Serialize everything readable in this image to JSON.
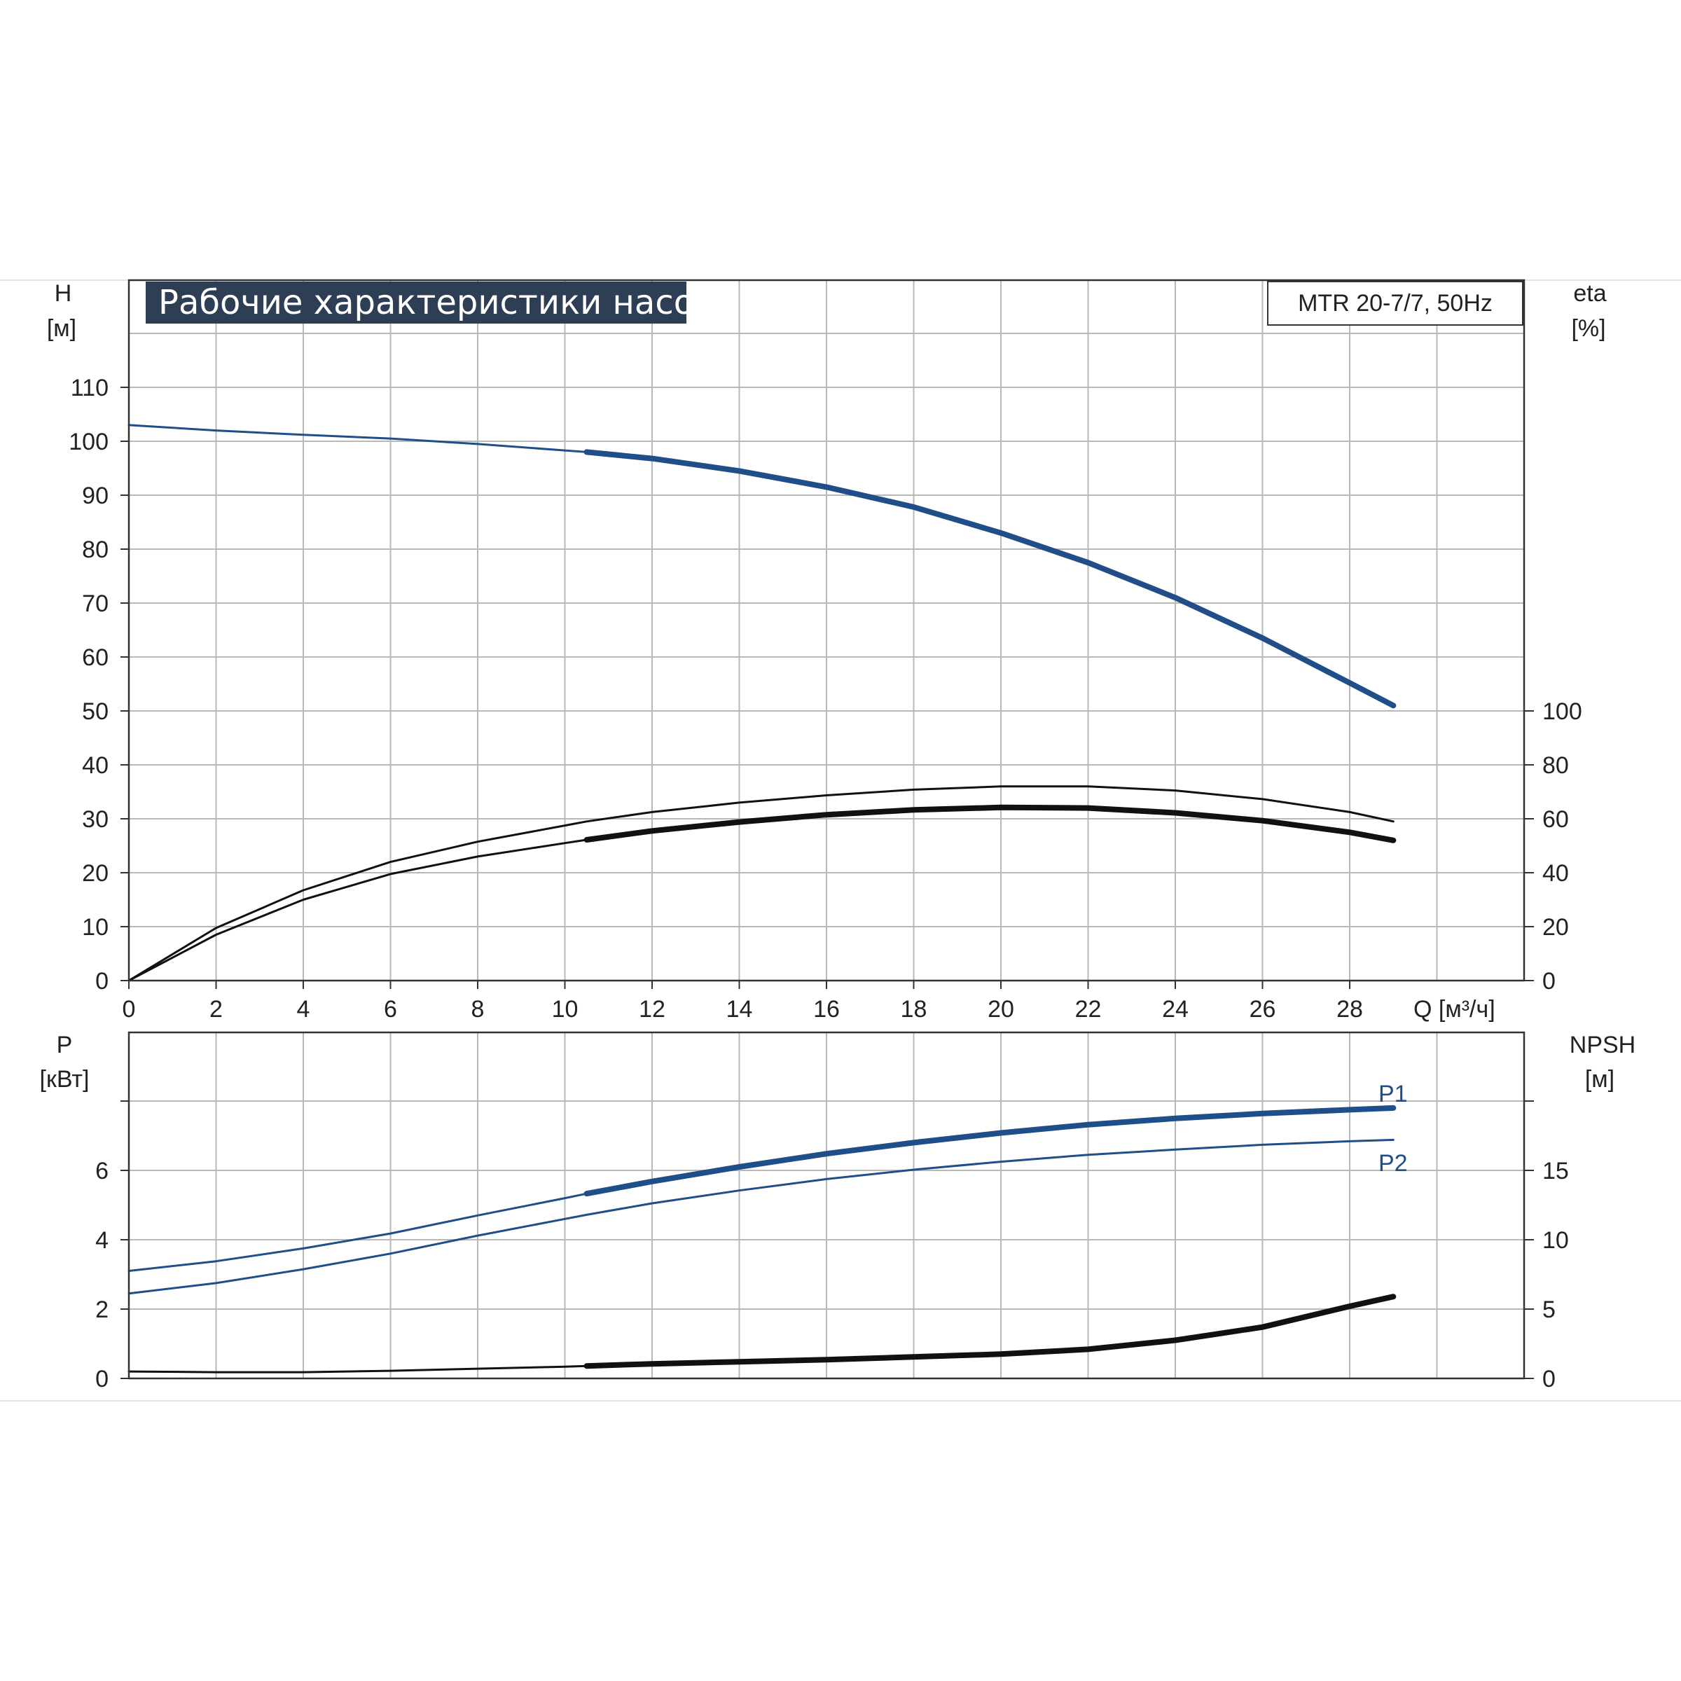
{
  "chart_data": [
    {
      "type": "line",
      "title": "Рабочие характеристики насоса",
      "model": "MTR 20-7/7, 50Hz",
      "x_axis": {
        "label": "Q [м³/ч]",
        "ticks": [
          "0",
          "2",
          "4",
          "6",
          "8",
          "10",
          "12",
          "14",
          "16",
          "18",
          "20",
          "22",
          "24",
          "26",
          "28"
        ],
        "range": [
          0,
          32
        ]
      },
      "y_left": {
        "label_top": "H",
        "label_unit": "[м]",
        "ticks": [
          "0",
          "10",
          "20",
          "30",
          "40",
          "50",
          "60",
          "70",
          "80",
          "90",
          "100",
          "110"
        ],
        "range": [
          0,
          120
        ]
      },
      "y_right": {
        "label_top": "eta",
        "label_unit": "[%]",
        "ticks": [
          "0",
          "20",
          "40",
          "60",
          "80",
          "100"
        ],
        "range": [
          0,
          100
        ]
      },
      "grid": true,
      "series": [
        {
          "color": "#1f4e89",
          "axis": "left",
          "x": [
            0,
            2,
            4,
            6,
            8,
            10,
            10.5,
            12,
            14,
            16,
            18,
            20,
            22,
            24,
            26,
            28,
            29
          ],
          "y": [
            103,
            102,
            101.2,
            100.5,
            99.5,
            98.3,
            98,
            96.8,
            94.5,
            91.5,
            87.8,
            83,
            77.5,
            71,
            63.5,
            55.2,
            51
          ],
          "heavy_from_x": 10.5
        },
        {
          "color": "#111111",
          "axis": "right",
          "x": [
            0,
            2,
            4,
            6,
            8,
            10,
            10.5,
            12,
            14,
            16,
            18,
            20,
            22,
            24,
            26,
            28,
            29
          ],
          "y": [
            0,
            19.5,
            33.5,
            44,
            51.5,
            57.5,
            59,
            62.5,
            66,
            68.7,
            70.8,
            72,
            72,
            70.5,
            67.3,
            62.5,
            59
          ],
          "heavy_from_x": 99
        },
        {
          "color": "#111111",
          "axis": "right",
          "x": [
            0,
            2,
            4,
            6,
            8,
            10,
            10.5,
            12,
            14,
            16,
            18,
            20,
            22,
            24,
            26,
            28,
            29
          ],
          "y": [
            0,
            17,
            30,
            39.5,
            46,
            51,
            52.2,
            55.5,
            58.8,
            61.5,
            63.3,
            64.2,
            64,
            62.2,
            59.3,
            55,
            52
          ],
          "heavy_from_x": 10.5
        }
      ]
    },
    {
      "type": "line",
      "x_axis": {
        "ticks": [
          "0",
          "2",
          "4",
          "6",
          "8",
          "10",
          "12",
          "14",
          "16",
          "18",
          "20",
          "22",
          "24",
          "26",
          "28"
        ],
        "range": [
          0,
          32
        ]
      },
      "y_left": {
        "label_top": "P",
        "label_unit": "[кВт]",
        "ticks": [
          "0",
          "2",
          "4",
          "6"
        ],
        "range": [
          0,
          8
        ]
      },
      "y_right": {
        "label_top": "NPSH",
        "label_unit": "[м]",
        "ticks": [
          "0",
          "5",
          "10",
          "15"
        ],
        "range": [
          0,
          20
        ]
      },
      "grid": true,
      "series": [
        {
          "name": "P1",
          "color": "#1f4e89",
          "axis": "left",
          "x": [
            0,
            2,
            4,
            6,
            8,
            10,
            10.5,
            12,
            14,
            16,
            18,
            20,
            22,
            24,
            26,
            28,
            29
          ],
          "y": [
            3.1,
            3.38,
            3.75,
            4.18,
            4.7,
            5.2,
            5.33,
            5.68,
            6.1,
            6.48,
            6.8,
            7.08,
            7.32,
            7.5,
            7.64,
            7.75,
            7.8
          ],
          "heavy_from_x": 10.5
        },
        {
          "name": "P2",
          "color": "#1f4e89",
          "axis": "left",
          "x": [
            0,
            2,
            4,
            6,
            8,
            10,
            10.5,
            12,
            14,
            16,
            18,
            20,
            22,
            24,
            26,
            28,
            29
          ],
          "y": [
            2.45,
            2.75,
            3.15,
            3.6,
            4.12,
            4.6,
            4.72,
            5.05,
            5.42,
            5.75,
            6.02,
            6.25,
            6.45,
            6.6,
            6.74,
            6.84,
            6.88
          ],
          "heavy_from_x": 99
        },
        {
          "name": "NPSH",
          "color": "#111111",
          "axis": "right",
          "x": [
            0,
            2,
            4,
            6,
            8,
            10,
            10.5,
            12,
            14,
            16,
            18,
            20,
            22,
            24,
            26,
            28,
            29
          ],
          "y": [
            0.5,
            0.45,
            0.45,
            0.55,
            0.7,
            0.85,
            0.9,
            1.05,
            1.2,
            1.35,
            1.55,
            1.75,
            2.1,
            2.75,
            3.7,
            5.2,
            5.9
          ],
          "heavy_from_x": 10.5
        }
      ]
    }
  ]
}
